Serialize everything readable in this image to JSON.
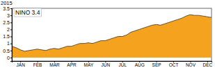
{
  "chart_data": {
    "type": "area",
    "title": "NINO 3.4",
    "subtitle": "2015",
    "categories": [
      null,
      null,
      "JAN",
      null,
      null,
      null,
      "FEB",
      null,
      null,
      null,
      "MAR",
      null,
      null,
      null,
      "APR",
      null,
      null,
      null,
      "MAY",
      null,
      null,
      null,
      "JUN",
      null,
      null,
      null,
      "JUL",
      null,
      null,
      null,
      "AUG",
      null,
      null,
      null,
      "SEP",
      null,
      null,
      null,
      "OCT",
      null,
      null,
      null,
      "NOV",
      null,
      null,
      null,
      "DEC",
      null
    ],
    "values": [
      0.8,
      0.7,
      0.55,
      0.45,
      0.5,
      0.55,
      0.6,
      0.55,
      0.5,
      0.6,
      0.65,
      0.6,
      0.7,
      0.8,
      0.8,
      0.9,
      1.0,
      1.0,
      1.05,
      1.0,
      1.1,
      1.2,
      1.2,
      1.3,
      1.4,
      1.5,
      1.5,
      1.6,
      1.8,
      1.9,
      2.0,
      2.1,
      2.2,
      2.3,
      2.35,
      2.3,
      2.4,
      2.5,
      2.6,
      2.7,
      2.8,
      2.95,
      3.05,
      3.0,
      3.0,
      2.95,
      2.9,
      2.85
    ],
    "color": "#f5a21e",
    "ylim": [
      -0.25,
      3.5
    ],
    "yticks": [
      0,
      0.5,
      1,
      1.5,
      2,
      2.5,
      3,
      3.5
    ]
  }
}
